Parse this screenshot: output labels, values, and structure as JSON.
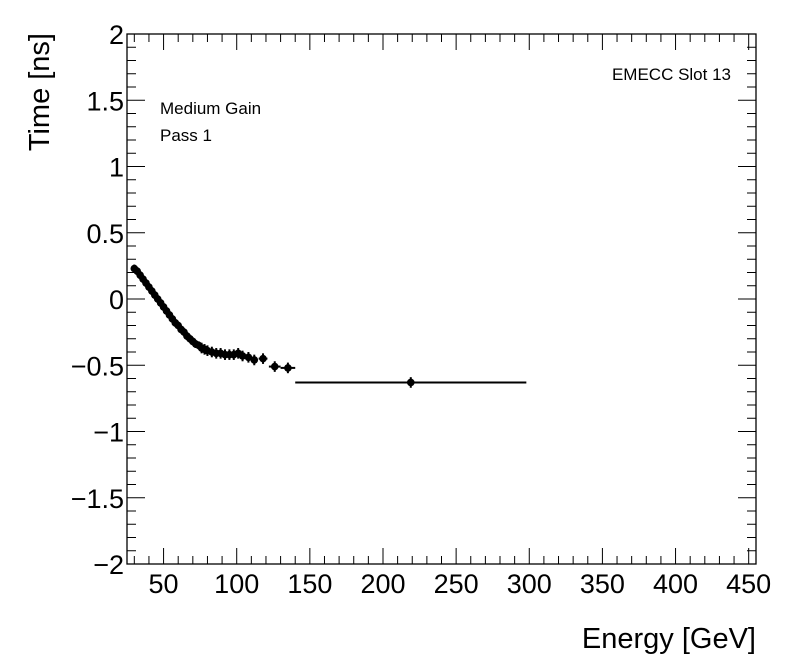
{
  "chart_data": {
    "type": "scatter",
    "title": "",
    "xlabel": "Energy [GeV]",
    "ylabel": "Time [ns]",
    "xlim": [
      25,
      455
    ],
    "ylim": [
      -2,
      2
    ],
    "x_ticks": [
      50,
      100,
      150,
      200,
      250,
      300,
      350,
      400,
      450
    ],
    "y_ticks": [
      -2,
      -1.5,
      -1,
      -0.5,
      0,
      0.5,
      1,
      1.5,
      2
    ],
    "x_tick_labels": [
      "50",
      "100",
      "150",
      "200",
      "250",
      "300",
      "350",
      "400",
      "450"
    ],
    "y_tick_labels": [
      "−2",
      "−1.5",
      "−1",
      "−0.5",
      "0",
      "0.5",
      "1",
      "1.5",
      "2"
    ],
    "annotations": {
      "gain": "Medium Gain",
      "pass": "Pass 1",
      "slot": "EMECC Slot 13"
    },
    "series": [
      {
        "name": "Pass 1",
        "points": [
          {
            "x": 30,
            "y": 0.23,
            "xerr": 1,
            "yerr": 0.03
          },
          {
            "x": 32,
            "y": 0.21,
            "xerr": 1,
            "yerr": 0.03
          },
          {
            "x": 34,
            "y": 0.18,
            "xerr": 1,
            "yerr": 0.03
          },
          {
            "x": 36,
            "y": 0.15,
            "xerr": 1,
            "yerr": 0.03
          },
          {
            "x": 38,
            "y": 0.12,
            "xerr": 1,
            "yerr": 0.03
          },
          {
            "x": 40,
            "y": 0.09,
            "xerr": 1,
            "yerr": 0.03
          },
          {
            "x": 42,
            "y": 0.06,
            "xerr": 1,
            "yerr": 0.03
          },
          {
            "x": 44,
            "y": 0.03,
            "xerr": 1,
            "yerr": 0.03
          },
          {
            "x": 46,
            "y": 0.0,
            "xerr": 1,
            "yerr": 0.03
          },
          {
            "x": 48,
            "y": -0.03,
            "xerr": 1,
            "yerr": 0.03
          },
          {
            "x": 50,
            "y": -0.06,
            "xerr": 1,
            "yerr": 0.03
          },
          {
            "x": 52,
            "y": -0.09,
            "xerr": 1,
            "yerr": 0.03
          },
          {
            "x": 54,
            "y": -0.12,
            "xerr": 1,
            "yerr": 0.03
          },
          {
            "x": 56,
            "y": -0.15,
            "xerr": 1,
            "yerr": 0.03
          },
          {
            "x": 58,
            "y": -0.18,
            "xerr": 1,
            "yerr": 0.03
          },
          {
            "x": 60,
            "y": -0.2,
            "xerr": 1,
            "yerr": 0.03
          },
          {
            "x": 62,
            "y": -0.23,
            "xerr": 1,
            "yerr": 0.03
          },
          {
            "x": 64,
            "y": -0.25,
            "xerr": 1,
            "yerr": 0.03
          },
          {
            "x": 66,
            "y": -0.28,
            "xerr": 1,
            "yerr": 0.03
          },
          {
            "x": 68,
            "y": -0.3,
            "xerr": 1,
            "yerr": 0.03
          },
          {
            "x": 70,
            "y": -0.32,
            "xerr": 1,
            "yerr": 0.03
          },
          {
            "x": 72,
            "y": -0.34,
            "xerr": 1,
            "yerr": 0.03
          },
          {
            "x": 74,
            "y": -0.35,
            "xerr": 1,
            "yerr": 0.03
          },
          {
            "x": 76,
            "y": -0.37,
            "xerr": 1,
            "yerr": 0.04
          },
          {
            "x": 78,
            "y": -0.38,
            "xerr": 1,
            "yerr": 0.04
          },
          {
            "x": 80,
            "y": -0.39,
            "xerr": 1,
            "yerr": 0.04
          },
          {
            "x": 83,
            "y": -0.4,
            "xerr": 1.5,
            "yerr": 0.04
          },
          {
            "x": 86,
            "y": -0.41,
            "xerr": 1.5,
            "yerr": 0.04
          },
          {
            "x": 89,
            "y": -0.41,
            "xerr": 1.5,
            "yerr": 0.04
          },
          {
            "x": 92,
            "y": -0.42,
            "xerr": 1.5,
            "yerr": 0.04
          },
          {
            "x": 95,
            "y": -0.42,
            "xerr": 1.5,
            "yerr": 0.04
          },
          {
            "x": 98,
            "y": -0.42,
            "xerr": 1.5,
            "yerr": 0.04
          },
          {
            "x": 101,
            "y": -0.41,
            "xerr": 1.5,
            "yerr": 0.04
          },
          {
            "x": 104,
            "y": -0.43,
            "xerr": 1.5,
            "yerr": 0.04
          },
          {
            "x": 108,
            "y": -0.44,
            "xerr": 2,
            "yerr": 0.04
          },
          {
            "x": 112,
            "y": -0.46,
            "xerr": 2,
            "yerr": 0.04
          },
          {
            "x": 118,
            "y": -0.45,
            "xerr": 3,
            "yerr": 0.04
          },
          {
            "x": 126,
            "y": -0.51,
            "xerr": 4,
            "yerr": 0.04
          },
          {
            "x": 135,
            "y": -0.52,
            "xerr": 5,
            "yerr": 0.04
          },
          {
            "x": 219,
            "y": -0.63,
            "xerr": 79,
            "yerr": 0.04
          }
        ]
      }
    ]
  }
}
